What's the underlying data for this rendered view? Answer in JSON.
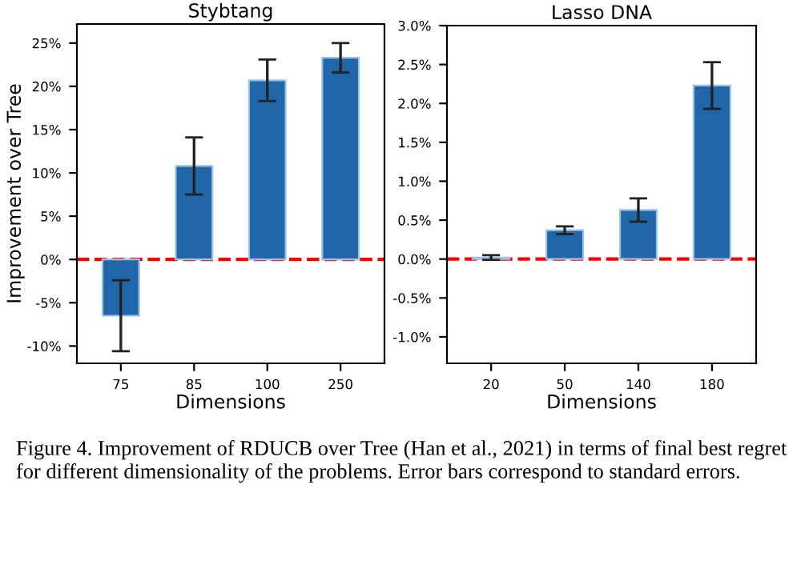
{
  "chart_data": [
    {
      "type": "bar",
      "title": "Stybtang",
      "xlabel": "Dimensions",
      "ylabel": "Improvement over Tree",
      "categories": [
        "75",
        "85",
        "100",
        "250"
      ],
      "series": [
        {
          "color": "#2066a8",
          "values": [
            -6.5,
            10.8,
            20.7,
            23.3
          ],
          "errors": [
            4.1,
            3.3,
            2.4,
            1.7
          ]
        }
      ],
      "ylim": [
        -12,
        27.2
      ],
      "yticks": [
        {
          "value": -10,
          "label": "-10%"
        },
        {
          "value": -5,
          "label": "-5%"
        },
        {
          "value": 0,
          "label": "0%"
        },
        {
          "value": 5,
          "label": "5%"
        },
        {
          "value": 10,
          "label": "10%"
        },
        {
          "value": 15,
          "label": "15%"
        },
        {
          "value": 20,
          "label": "20%"
        },
        {
          "value": 25,
          "label": "25%"
        }
      ],
      "ref_lines": [
        {
          "axis": "y",
          "value": 0,
          "color": "#ff0000",
          "line_style": "dashed"
        }
      ],
      "grid": false,
      "legend": false,
      "annotations": [
        "Figure 4. Improvement of RDUCB over Tree (Han et al., 2021) in terms of final best regret for different dimensionality of the problems. Error bars correspond to standard errors."
      ]
    },
    {
      "type": "bar",
      "title": "Lasso DNA",
      "xlabel": "Dimensions",
      "categories": [
        "20",
        "50",
        "140",
        "180"
      ],
      "series": [
        {
          "color": "#2066a8",
          "values": [
            0.02,
            0.37,
            0.63,
            2.23
          ],
          "errors": [
            0.03,
            0.05,
            0.15,
            0.3
          ]
        }
      ],
      "ylim": [
        -1.34,
        3.0
      ],
      "yticks": [
        {
          "value": -1.0,
          "label": "-1.0%"
        },
        {
          "value": -0.5,
          "label": "-0.5%"
        },
        {
          "value": 0,
          "label": "0.0%"
        },
        {
          "value": 0.5,
          "label": "0.5%"
        },
        {
          "value": 1.0,
          "label": "1.0%"
        },
        {
          "value": 1.5,
          "label": "1.5%"
        },
        {
          "value": 2.0,
          "label": "2.0%"
        },
        {
          "value": 2.5,
          "label": "2.5%"
        },
        {
          "value": 3.0,
          "label": "3.0%"
        }
      ],
      "ref_lines": [
        {
          "axis": "y",
          "value": 0,
          "color": "#ff0000",
          "line_style": "dashed"
        }
      ],
      "grid": false,
      "legend": false
    }
  ]
}
